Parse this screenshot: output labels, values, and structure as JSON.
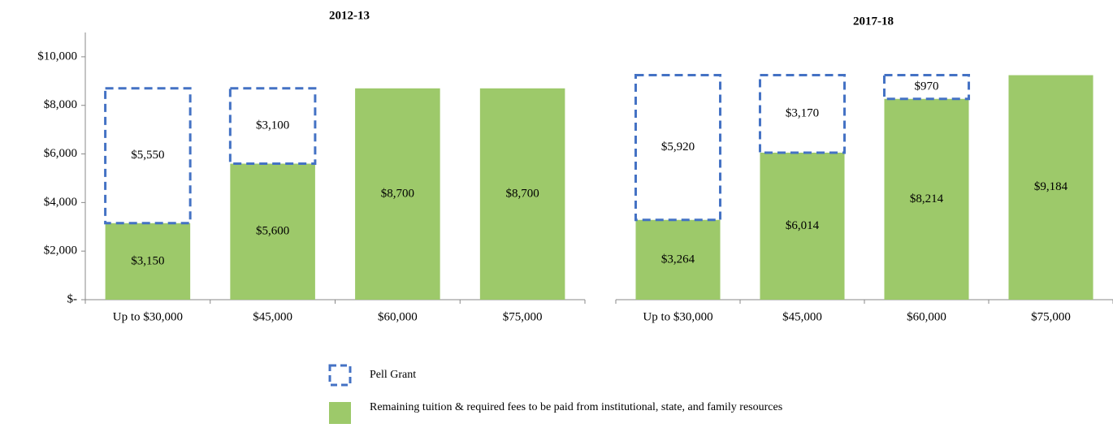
{
  "chart_data": [
    {
      "type": "stacked-bar",
      "title": "2012-13",
      "categories": [
        "Up to $30,000",
        "$45,000",
        "$60,000",
        "$75,000"
      ],
      "series": [
        {
          "name": "Remaining tuition & required fees to be paid from institutional, state, and family resources",
          "color": "#9dc96a",
          "values": [
            3150,
            5600,
            8700,
            8700
          ],
          "value_labels": [
            "$3,150",
            "$5,600",
            "$8,700",
            "$8,700"
          ]
        },
        {
          "name": "Pell Grant",
          "color": "#4472c4",
          "values": [
            5550,
            3100,
            null,
            null
          ],
          "value_labels": [
            "$5,550",
            "$3,100",
            null,
            null
          ]
        }
      ],
      "ylim": [
        0,
        11000
      ],
      "yticks": [
        {
          "value": 0,
          "label": "$-"
        },
        {
          "value": 2000,
          "label": "$2,000"
        },
        {
          "value": 4000,
          "label": "$4,000"
        },
        {
          "value": 6000,
          "label": "$6,000"
        },
        {
          "value": 8000,
          "label": "$8,000"
        },
        {
          "value": 10000,
          "label": "$10,000"
        }
      ]
    },
    {
      "type": "stacked-bar",
      "title": "2017-18",
      "categories": [
        "Up to $30,000",
        "$45,000",
        "$60,000",
        "$75,000"
      ],
      "series": [
        {
          "color": "#9dc96a",
          "values": [
            3264,
            6014,
            8214,
            9184
          ],
          "value_labels": [
            "$3,264",
            "$6,014",
            "$8,214",
            "$9,184"
          ]
        },
        {
          "color": "#4472c4",
          "values": [
            5920,
            3170,
            970,
            null
          ],
          "value_labels": [
            "$5,920",
            "$3,170",
            "$970",
            null
          ]
        }
      ],
      "ylim": [
        0,
        10000
      ]
    }
  ]
}
